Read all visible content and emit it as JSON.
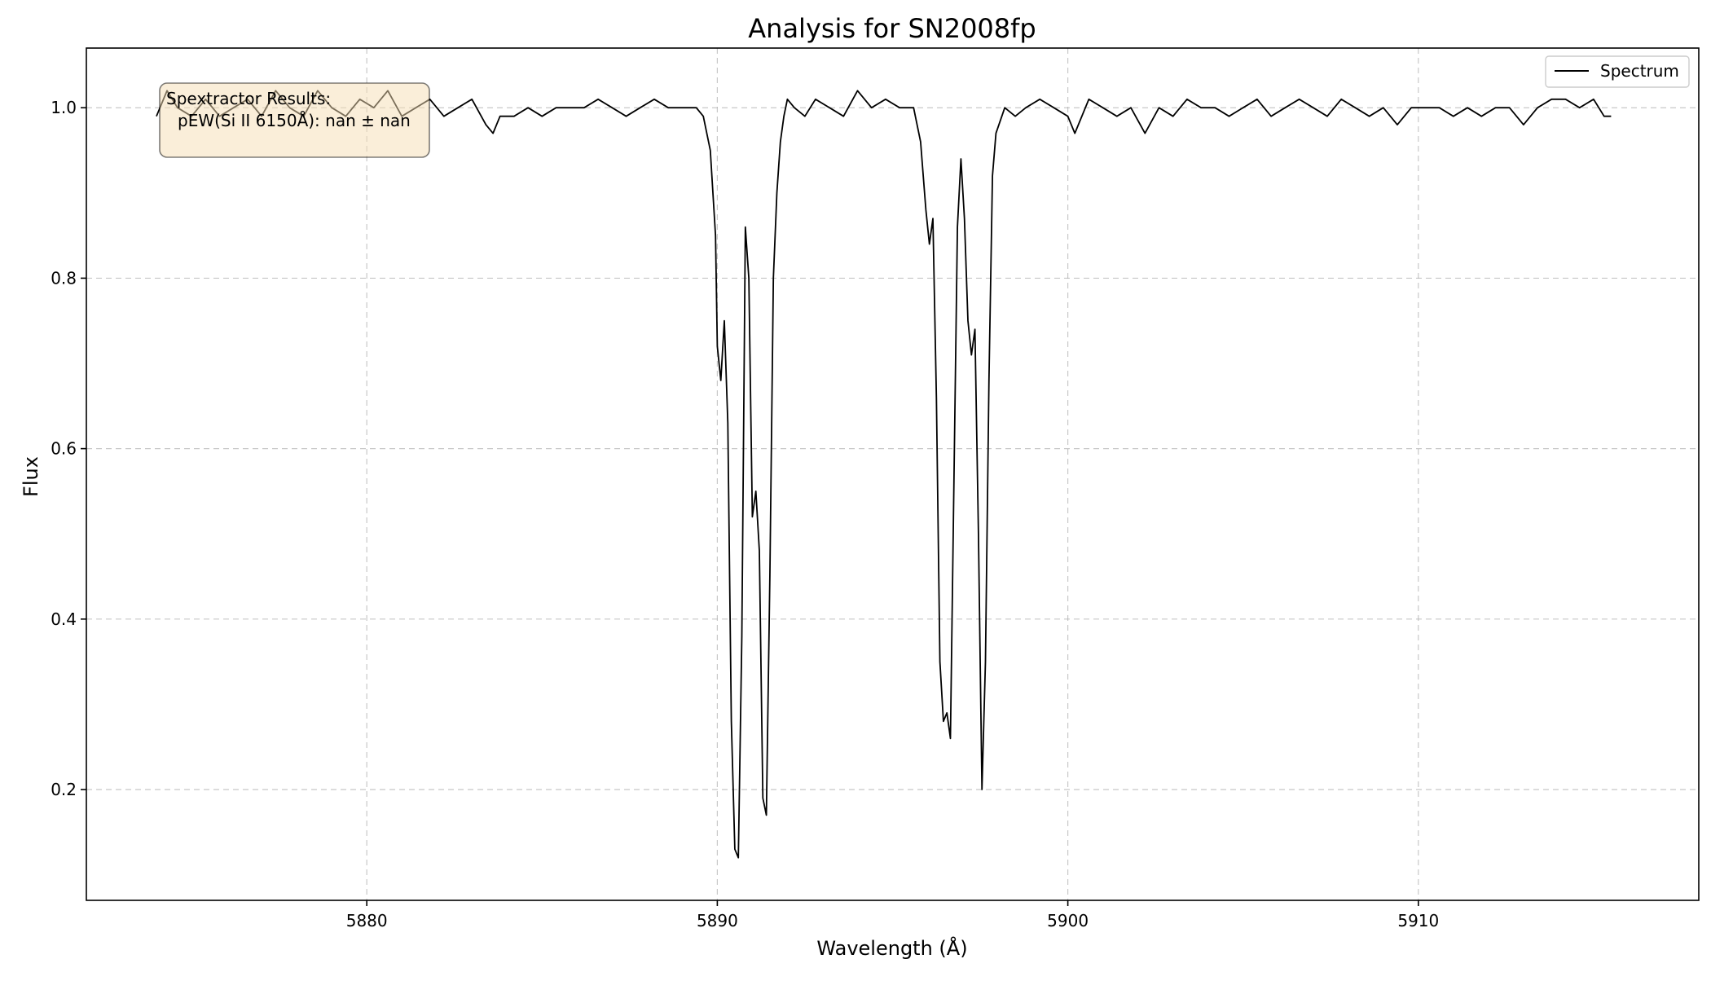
{
  "chart_data": {
    "type": "line",
    "title": "Analysis for SN2008fp",
    "xlabel": "Wavelength (Å)",
    "ylabel": "Flux",
    "xlim": [
      5872,
      5918
    ],
    "ylim": [
      0.07,
      1.07
    ],
    "xticks": [
      5880,
      5890,
      5900,
      5910
    ],
    "yticks": [
      0.2,
      0.4,
      0.6,
      0.8,
      1.0
    ],
    "xtick_labels": [
      "5880",
      "5890",
      "5900",
      "5910"
    ],
    "ytick_labels": [
      "0.2",
      "0.4",
      "0.6",
      "0.8",
      "1.0"
    ],
    "grid": true,
    "legend": {
      "placement": "top-right",
      "entries": [
        "Spectrum"
      ]
    },
    "annotation": {
      "lines": [
        "Spextractor Results:",
        "pEW(Si II 6150Å): nan ± nan"
      ],
      "placement": "top-left",
      "box_color": "#f5deb3"
    },
    "series": [
      {
        "name": "Spectrum",
        "color": "#000000",
        "x": [
          5874.0,
          5874.3,
          5874.6,
          5875.0,
          5875.4,
          5875.8,
          5876.2,
          5876.6,
          5877.0,
          5877.4,
          5877.8,
          5878.2,
          5878.6,
          5879.0,
          5879.4,
          5879.8,
          5880.2,
          5880.6,
          5881.0,
          5881.4,
          5881.8,
          5882.2,
          5882.6,
          5883.0,
          5883.4,
          5883.6,
          5883.8,
          5884.2,
          5884.6,
          5885.0,
          5885.4,
          5885.8,
          5886.2,
          5886.6,
          5887.0,
          5887.4,
          5887.8,
          5888.2,
          5888.6,
          5889.0,
          5889.4,
          5889.6,
          5889.8,
          5889.95,
          5890.0,
          5890.1,
          5890.2,
          5890.3,
          5890.4,
          5890.5,
          5890.6,
          5890.7,
          5890.8,
          5890.9,
          5891.0,
          5891.1,
          5891.2,
          5891.3,
          5891.4,
          5891.5,
          5891.6,
          5891.7,
          5891.8,
          5891.9,
          5892.0,
          5892.2,
          5892.5,
          5892.8,
          5893.2,
          5893.6,
          5894.0,
          5894.4,
          5894.8,
          5895.2,
          5895.6,
          5895.8,
          5895.95,
          5896.05,
          5896.15,
          5896.25,
          5896.35,
          5896.45,
          5896.55,
          5896.65,
          5896.75,
          5896.85,
          5896.95,
          5897.05,
          5897.15,
          5897.25,
          5897.35,
          5897.45,
          5897.55,
          5897.65,
          5897.75,
          5897.85,
          5897.95,
          5898.2,
          5898.5,
          5898.8,
          5899.2,
          5899.6,
          5900.0,
          5900.2,
          5900.6,
          5901.0,
          5901.4,
          5901.8,
          5902.2,
          5902.6,
          5903.0,
          5903.4,
          5903.8,
          5904.2,
          5904.6,
          5905.0,
          5905.4,
          5905.8,
          5906.2,
          5906.6,
          5907.0,
          5907.4,
          5907.8,
          5908.2,
          5908.6,
          5909.0,
          5909.4,
          5909.8,
          5910.2,
          5910.6,
          5911.0,
          5911.4,
          5911.8,
          5912.2,
          5912.6,
          5913.0,
          5913.4,
          5913.8,
          5914.2,
          5914.6,
          5915.0,
          5915.3,
          5915.5
        ],
        "y": [
          0.99,
          1.02,
          1.0,
          0.99,
          1.01,
          0.99,
          1.0,
          1.01,
          0.99,
          1.02,
          1.0,
          0.99,
          1.02,
          1.0,
          0.99,
          1.01,
          1.0,
          1.02,
          0.99,
          1.0,
          1.01,
          0.99,
          1.0,
          1.01,
          0.98,
          0.97,
          0.99,
          0.99,
          1.0,
          0.99,
          1.0,
          1.0,
          1.0,
          1.01,
          1.0,
          0.99,
          1.0,
          1.01,
          1.0,
          1.0,
          1.0,
          0.99,
          0.95,
          0.85,
          0.72,
          0.68,
          0.75,
          0.63,
          0.28,
          0.13,
          0.12,
          0.38,
          0.86,
          0.8,
          0.52,
          0.55,
          0.48,
          0.19,
          0.17,
          0.45,
          0.8,
          0.9,
          0.96,
          0.99,
          1.01,
          1.0,
          0.99,
          1.01,
          1.0,
          0.99,
          1.02,
          1.0,
          1.01,
          1.0,
          1.0,
          0.96,
          0.88,
          0.84,
          0.87,
          0.66,
          0.35,
          0.28,
          0.29,
          0.26,
          0.56,
          0.86,
          0.94,
          0.87,
          0.75,
          0.71,
          0.74,
          0.5,
          0.2,
          0.35,
          0.68,
          0.92,
          0.97,
          1.0,
          0.99,
          1.0,
          1.01,
          1.0,
          0.99,
          0.97,
          1.01,
          1.0,
          0.99,
          1.0,
          0.97,
          1.0,
          0.99,
          1.01,
          1.0,
          1.0,
          0.99,
          1.0,
          1.01,
          0.99,
          1.0,
          1.01,
          1.0,
          0.99,
          1.01,
          1.0,
          0.99,
          1.0,
          0.98,
          1.0,
          1.0,
          1.0,
          0.99,
          1.0,
          0.99,
          1.0,
          1.0,
          0.98,
          1.0,
          1.01,
          1.01,
          1.0,
          1.01,
          0.99,
          0.99
        ]
      }
    ]
  }
}
